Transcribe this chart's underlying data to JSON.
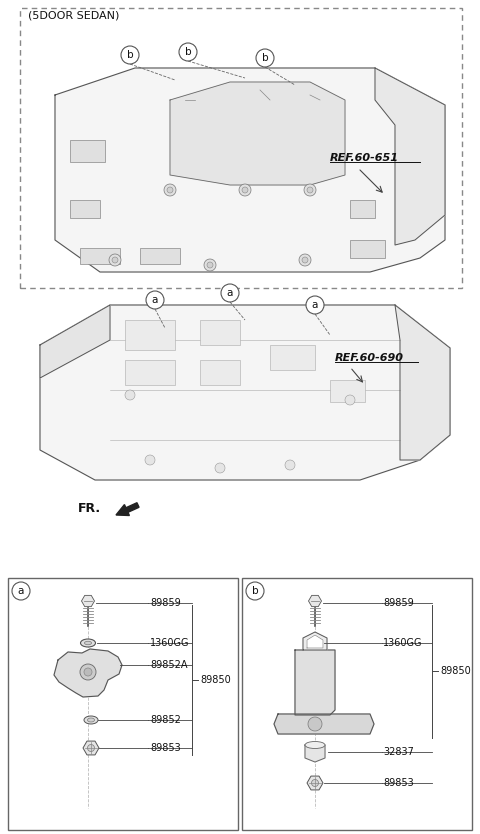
{
  "bg_color": "#ffffff",
  "text_color": "#111111",
  "line_color": "#444444",
  "gray_fill": "#f2f2f2",
  "dark_fill": "#d8d8d8",
  "top_box_label": "(5DOOR SEDAN)",
  "top_box_ref": "REF.60-651",
  "mid_ref": "REF.60-690",
  "fr_label": "FR.",
  "part_a_label": "a",
  "part_b_label": "b",
  "parts_a_labels": [
    "89859",
    "1360GG",
    "89852A",
    "89850",
    "89852",
    "89853"
  ],
  "parts_b_labels": [
    "89859",
    "1360GG",
    "89850",
    "32837",
    "89853"
  ]
}
